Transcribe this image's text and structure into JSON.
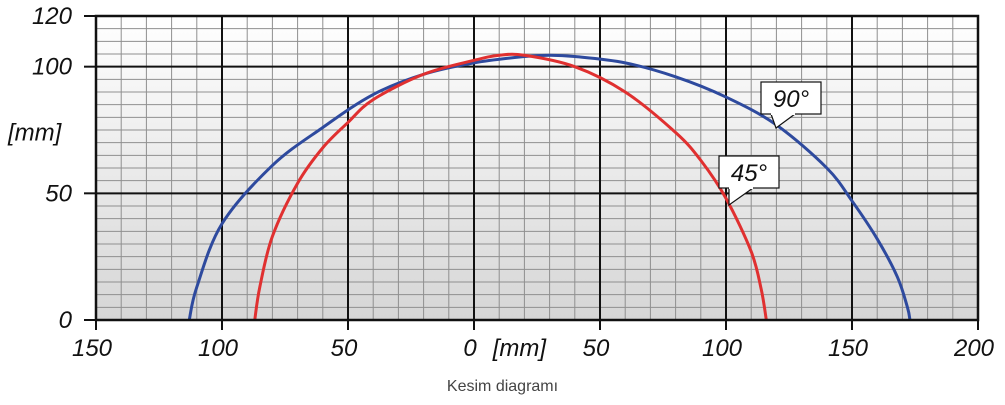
{
  "chart_data": {
    "type": "line",
    "caption": "Kesim diagramı",
    "xlabel": "[mm]",
    "ylabel": "[mm]",
    "x_ticks": [
      "150",
      "100",
      "50",
      "0",
      "50",
      "100",
      "150",
      "200"
    ],
    "y_ticks": [
      "0",
      "50",
      "100",
      "120"
    ],
    "xlim": [
      -150,
      200
    ],
    "ylim": [
      0,
      120
    ],
    "grid": true,
    "series": [
      {
        "name": "90°",
        "color": "#2e4a9e",
        "points": [
          [
            -113,
            0
          ],
          [
            -110,
            13
          ],
          [
            -100,
            38
          ],
          [
            -80,
            61
          ],
          [
            -60,
            76
          ],
          [
            -40,
            89
          ],
          [
            -20,
            97
          ],
          [
            0,
            101.5
          ],
          [
            20,
            104
          ],
          [
            30,
            104.5
          ],
          [
            40,
            104
          ],
          [
            60,
            101.5
          ],
          [
            80,
            96
          ],
          [
            100,
            88
          ],
          [
            120,
            77
          ],
          [
            140,
            60
          ],
          [
            150,
            47
          ],
          [
            160,
            32
          ],
          [
            168,
            17
          ],
          [
            172,
            5
          ],
          [
            173,
            0
          ]
        ]
      },
      {
        "name": "45°",
        "color": "#e03030",
        "points": [
          [
            -87,
            0
          ],
          [
            -85,
            13
          ],
          [
            -80,
            33
          ],
          [
            -70,
            54
          ],
          [
            -60,
            68
          ],
          [
            -50,
            78
          ],
          [
            -40,
            87
          ],
          [
            -20,
            97
          ],
          [
            0,
            102.5
          ],
          [
            10,
            104.5
          ],
          [
            20,
            104.5
          ],
          [
            40,
            100
          ],
          [
            60,
            90
          ],
          [
            80,
            74
          ],
          [
            90,
            63
          ],
          [
            100,
            48
          ],
          [
            110,
            27
          ],
          [
            114,
            12
          ],
          [
            116,
            0
          ]
        ]
      }
    ]
  }
}
